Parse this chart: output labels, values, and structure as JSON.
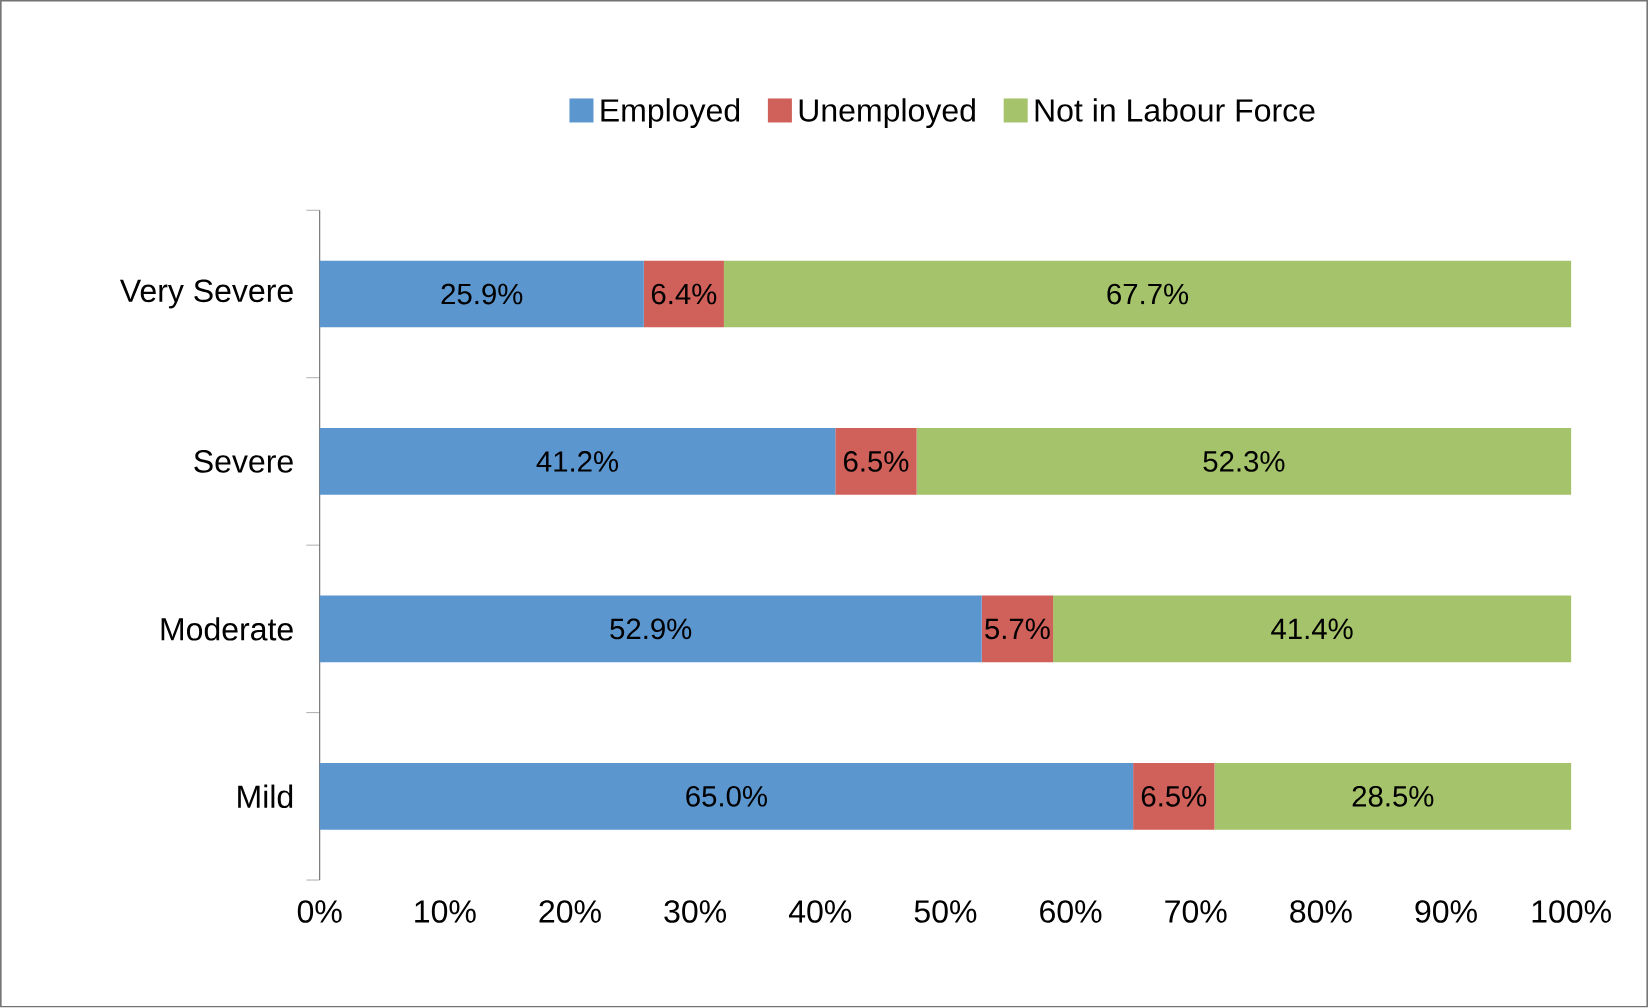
{
  "chart_data": {
    "type": "bar",
    "orientation": "horizontal",
    "stacked": true,
    "categories": [
      "Very Severe",
      "Severe",
      "Moderate",
      "Mild"
    ],
    "series": [
      {
        "name": "Employed",
        "color": "#5b96cf",
        "values": [
          25.9,
          41.2,
          52.9,
          65.0
        ],
        "value_labels": [
          "25.9%",
          "41.2%",
          "52.9%",
          "65.0%"
        ]
      },
      {
        "name": "Unemployed",
        "color": "#d0605a",
        "values": [
          6.4,
          6.5,
          5.7,
          6.5
        ],
        "value_labels": [
          "6.4%",
          "6.5%",
          "5.7%",
          "6.5%"
        ]
      },
      {
        "name": "Not in Labour Force",
        "color": "#a5c36a",
        "values": [
          67.7,
          52.3,
          41.4,
          28.5
        ],
        "value_labels": [
          "67.7%",
          "52.3%",
          "41.4%",
          "28.5%"
        ]
      }
    ],
    "xlim": [
      0,
      100
    ],
    "xticks": [
      {
        "value": 0,
        "label": "0%"
      },
      {
        "value": 10,
        "label": "10%"
      },
      {
        "value": 20,
        "label": "20%"
      },
      {
        "value": 30,
        "label": "30%"
      },
      {
        "value": 40,
        "label": "40%"
      },
      {
        "value": 50,
        "label": "50%"
      },
      {
        "value": 60,
        "label": "60%"
      },
      {
        "value": 70,
        "label": "70%"
      },
      {
        "value": 80,
        "label": "80%"
      },
      {
        "value": 90,
        "label": "90%"
      },
      {
        "value": 100,
        "label": "100%"
      }
    ],
    "grid": false,
    "legend": "top"
  }
}
